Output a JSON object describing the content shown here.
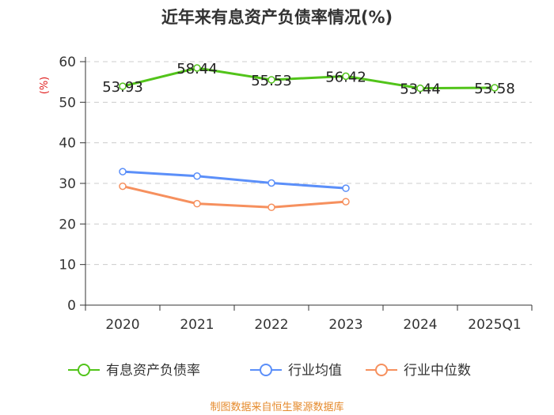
{
  "chart_data": {
    "type": "line",
    "title": "近年来有息资产负债率情况(%)",
    "ylabel": "(%)",
    "ylim": [
      0,
      60
    ],
    "yticks": [
      0,
      10,
      20,
      30,
      40,
      50,
      60
    ],
    "grid": true,
    "categories": [
      "2020",
      "2021",
      "2022",
      "2023",
      "2024",
      "2025Q1"
    ],
    "series": [
      {
        "name": "有息资产负债率",
        "color": "#52c41a",
        "values": [
          53.93,
          58.44,
          55.53,
          56.42,
          53.44,
          53.58
        ],
        "labels": [
          "53.93",
          "58.44",
          "55.53",
          "56.42",
          "53.44",
          "53.58"
        ]
      },
      {
        "name": "行业均值",
        "color": "#5b8ff9",
        "values": [
          32.9,
          31.8,
          30.1,
          28.8,
          null,
          null
        ]
      },
      {
        "name": "行业中位数",
        "color": "#f6905e",
        "values": [
          29.3,
          25.0,
          24.1,
          25.5,
          null,
          null
        ]
      }
    ],
    "legend_position": "bottom"
  },
  "colors": {
    "ylabel": "#e02020",
    "source": "#e58a2c",
    "axis": "#333333",
    "grid": "#cccccc"
  },
  "source_text": "制图数据来自恒生聚源数据库"
}
